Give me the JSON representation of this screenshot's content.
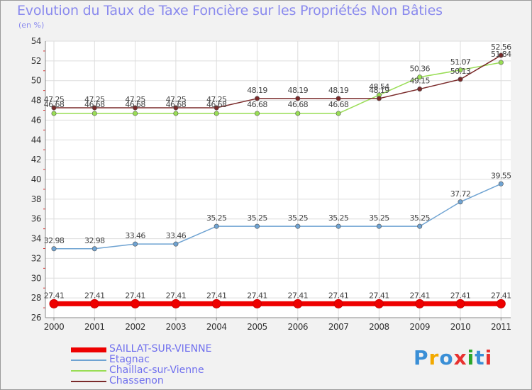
{
  "title": "Evolution du Taux de Taxe Foncière sur les Propriétés Non Bâties",
  "unit_label": "(en %)",
  "brand": {
    "text": "Proxiti",
    "letter_colors": [
      "#3a8fd6",
      "#f2a900",
      "#3a8fd6",
      "#e8312f",
      "#2aa62a",
      "#3a8fd6",
      "#e8312f"
    ]
  },
  "chart_data": {
    "type": "line",
    "x": [
      "2000",
      "2001",
      "2002",
      "2003",
      "2004",
      "2005",
      "2006",
      "2007",
      "2008",
      "2009",
      "2010",
      "2011"
    ],
    "ylim": [
      26,
      54
    ],
    "yticks": [
      26,
      28,
      30,
      32,
      34,
      36,
      38,
      40,
      42,
      44,
      46,
      48,
      50,
      52,
      54
    ],
    "grid": true,
    "legend_position": "bottom-left",
    "series": [
      {
        "name": "SAILLAT-SUR-VIENNE",
        "color": "#ee0000",
        "values": [
          27.41,
          27.41,
          27.41,
          27.41,
          27.41,
          27.41,
          27.41,
          27.41,
          27.41,
          27.41,
          27.41,
          27.41
        ],
        "labels": [
          "27.41",
          "27.41",
          "27.41",
          "27.41",
          "27.41",
          "27.41",
          "27.41",
          "27.41",
          "27.41",
          "27.41",
          "27.41",
          "27.41"
        ]
      },
      {
        "name": "Etagnac",
        "color": "#6fa3d2",
        "values": [
          32.98,
          32.98,
          33.46,
          33.46,
          35.25,
          35.25,
          35.25,
          35.25,
          35.25,
          35.25,
          37.72,
          39.55
        ],
        "labels": [
          "32.98",
          "32.98",
          "33.46",
          "33.46",
          "35.25",
          "35.25",
          "35.25",
          "35.25",
          "35.25",
          "35.25",
          "37.72",
          "39.55"
        ]
      },
      {
        "name": "Chaillac-sur-Vienne",
        "color": "#99dd55",
        "values": [
          46.68,
          46.68,
          46.68,
          46.68,
          46.68,
          46.68,
          46.68,
          46.68,
          48.54,
          50.36,
          51.07,
          51.84
        ],
        "labels": [
          "46.68",
          "46.68",
          "46.68",
          "46.68",
          "46.68",
          "46.68",
          "46.68",
          "46.68",
          "48.54",
          "50.36",
          "51.07",
          "51.84"
        ]
      },
      {
        "name": "Chassenon",
        "color": "#7a2a2a",
        "values": [
          47.25,
          47.25,
          47.25,
          47.25,
          47.25,
          48.19,
          48.19,
          48.19,
          48.19,
          49.15,
          50.13,
          52.56
        ],
        "labels": [
          "47.25",
          "47.25",
          "47.25",
          "47.25",
          "47.25",
          "48.19",
          "48.19",
          "48.19",
          "48.19",
          "49.15",
          "50.13",
          "52.56"
        ]
      }
    ]
  }
}
